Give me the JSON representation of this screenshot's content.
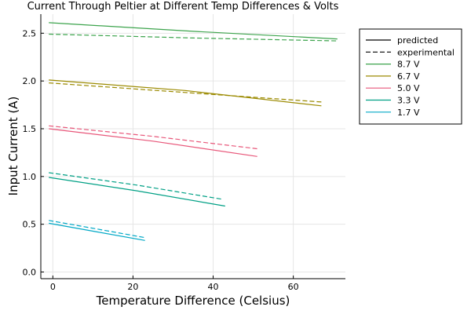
{
  "chart_data": {
    "type": "line",
    "title": "Current Through Peltier at Different Temp Differences & Volts",
    "xlabel": "Temperature Difference (Celsius)",
    "ylabel": "Input Current (A)",
    "xlim": [
      -3,
      73
    ],
    "ylim": [
      -0.07,
      2.7
    ],
    "xticks": [
      0,
      20,
      40,
      60
    ],
    "yticks": [
      0.0,
      0.5,
      1.0,
      1.5,
      2.0,
      2.5
    ],
    "xtick_labels": [
      "0",
      "20",
      "40",
      "60"
    ],
    "ytick_labels": [
      "0.0",
      "0.5",
      "1.0",
      "1.5",
      "2.0",
      "2.5"
    ],
    "grid": true,
    "legend_position": "top-right",
    "legend": [
      {
        "label": "predicted",
        "style": "solid",
        "color": "#000000"
      },
      {
        "label": "experimental",
        "style": "dashed",
        "color": "#000000"
      },
      {
        "label": "8.7 V",
        "style": "solid",
        "color": "#3da44d"
      },
      {
        "label": "6.7 V",
        "style": "solid",
        "color": "#9b8a00"
      },
      {
        "label": "5.0 V",
        "style": "solid",
        "color": "#e8577a"
      },
      {
        "label": "3.3 V",
        "style": "solid",
        "color": "#00a085"
      },
      {
        "label": "1.7 V",
        "style": "solid",
        "color": "#00a8c6"
      }
    ],
    "series": [
      {
        "name": "8.7 V",
        "kind": "predicted",
        "color": "#3da44d",
        "x": [
          -1,
          35,
          71
        ],
        "y": [
          2.61,
          2.52,
          2.44
        ]
      },
      {
        "name": "8.7 V",
        "kind": "experimental",
        "color": "#3da44d",
        "x": [
          -1,
          35,
          71
        ],
        "y": [
          2.49,
          2.45,
          2.42
        ]
      },
      {
        "name": "6.7 V",
        "kind": "predicted",
        "color": "#9b8a00",
        "x": [
          -1,
          33,
          67
        ],
        "y": [
          2.01,
          1.9,
          1.74
        ]
      },
      {
        "name": "6.7 V",
        "kind": "experimental",
        "color": "#9b8a00",
        "x": [
          -1,
          33,
          67
        ],
        "y": [
          1.98,
          1.88,
          1.78
        ]
      },
      {
        "name": "5.0 V",
        "kind": "predicted",
        "color": "#e8577a",
        "x": [
          -1,
          25,
          51
        ],
        "y": [
          1.5,
          1.37,
          1.21
        ]
      },
      {
        "name": "5.0 V",
        "kind": "experimental",
        "color": "#e8577a",
        "x": [
          -1,
          25,
          51
        ],
        "y": [
          1.53,
          1.42,
          1.29
        ]
      },
      {
        "name": "3.3 V",
        "kind": "predicted",
        "color": "#00a085",
        "x": [
          -1,
          21,
          43
        ],
        "y": [
          0.99,
          0.85,
          0.69
        ]
      },
      {
        "name": "3.3 V",
        "kind": "experimental",
        "color": "#00a085",
        "x": [
          -1,
          21,
          42.5
        ],
        "y": [
          1.04,
          0.91,
          0.76
        ]
      },
      {
        "name": "1.7 V",
        "kind": "predicted",
        "color": "#00a8c6",
        "x": [
          -1,
          11,
          23
        ],
        "y": [
          0.51,
          0.42,
          0.33
        ]
      },
      {
        "name": "1.7 V",
        "kind": "experimental",
        "color": "#00a8c6",
        "x": [
          -1,
          11,
          23
        ],
        "y": [
          0.54,
          0.45,
          0.36
        ]
      }
    ]
  }
}
